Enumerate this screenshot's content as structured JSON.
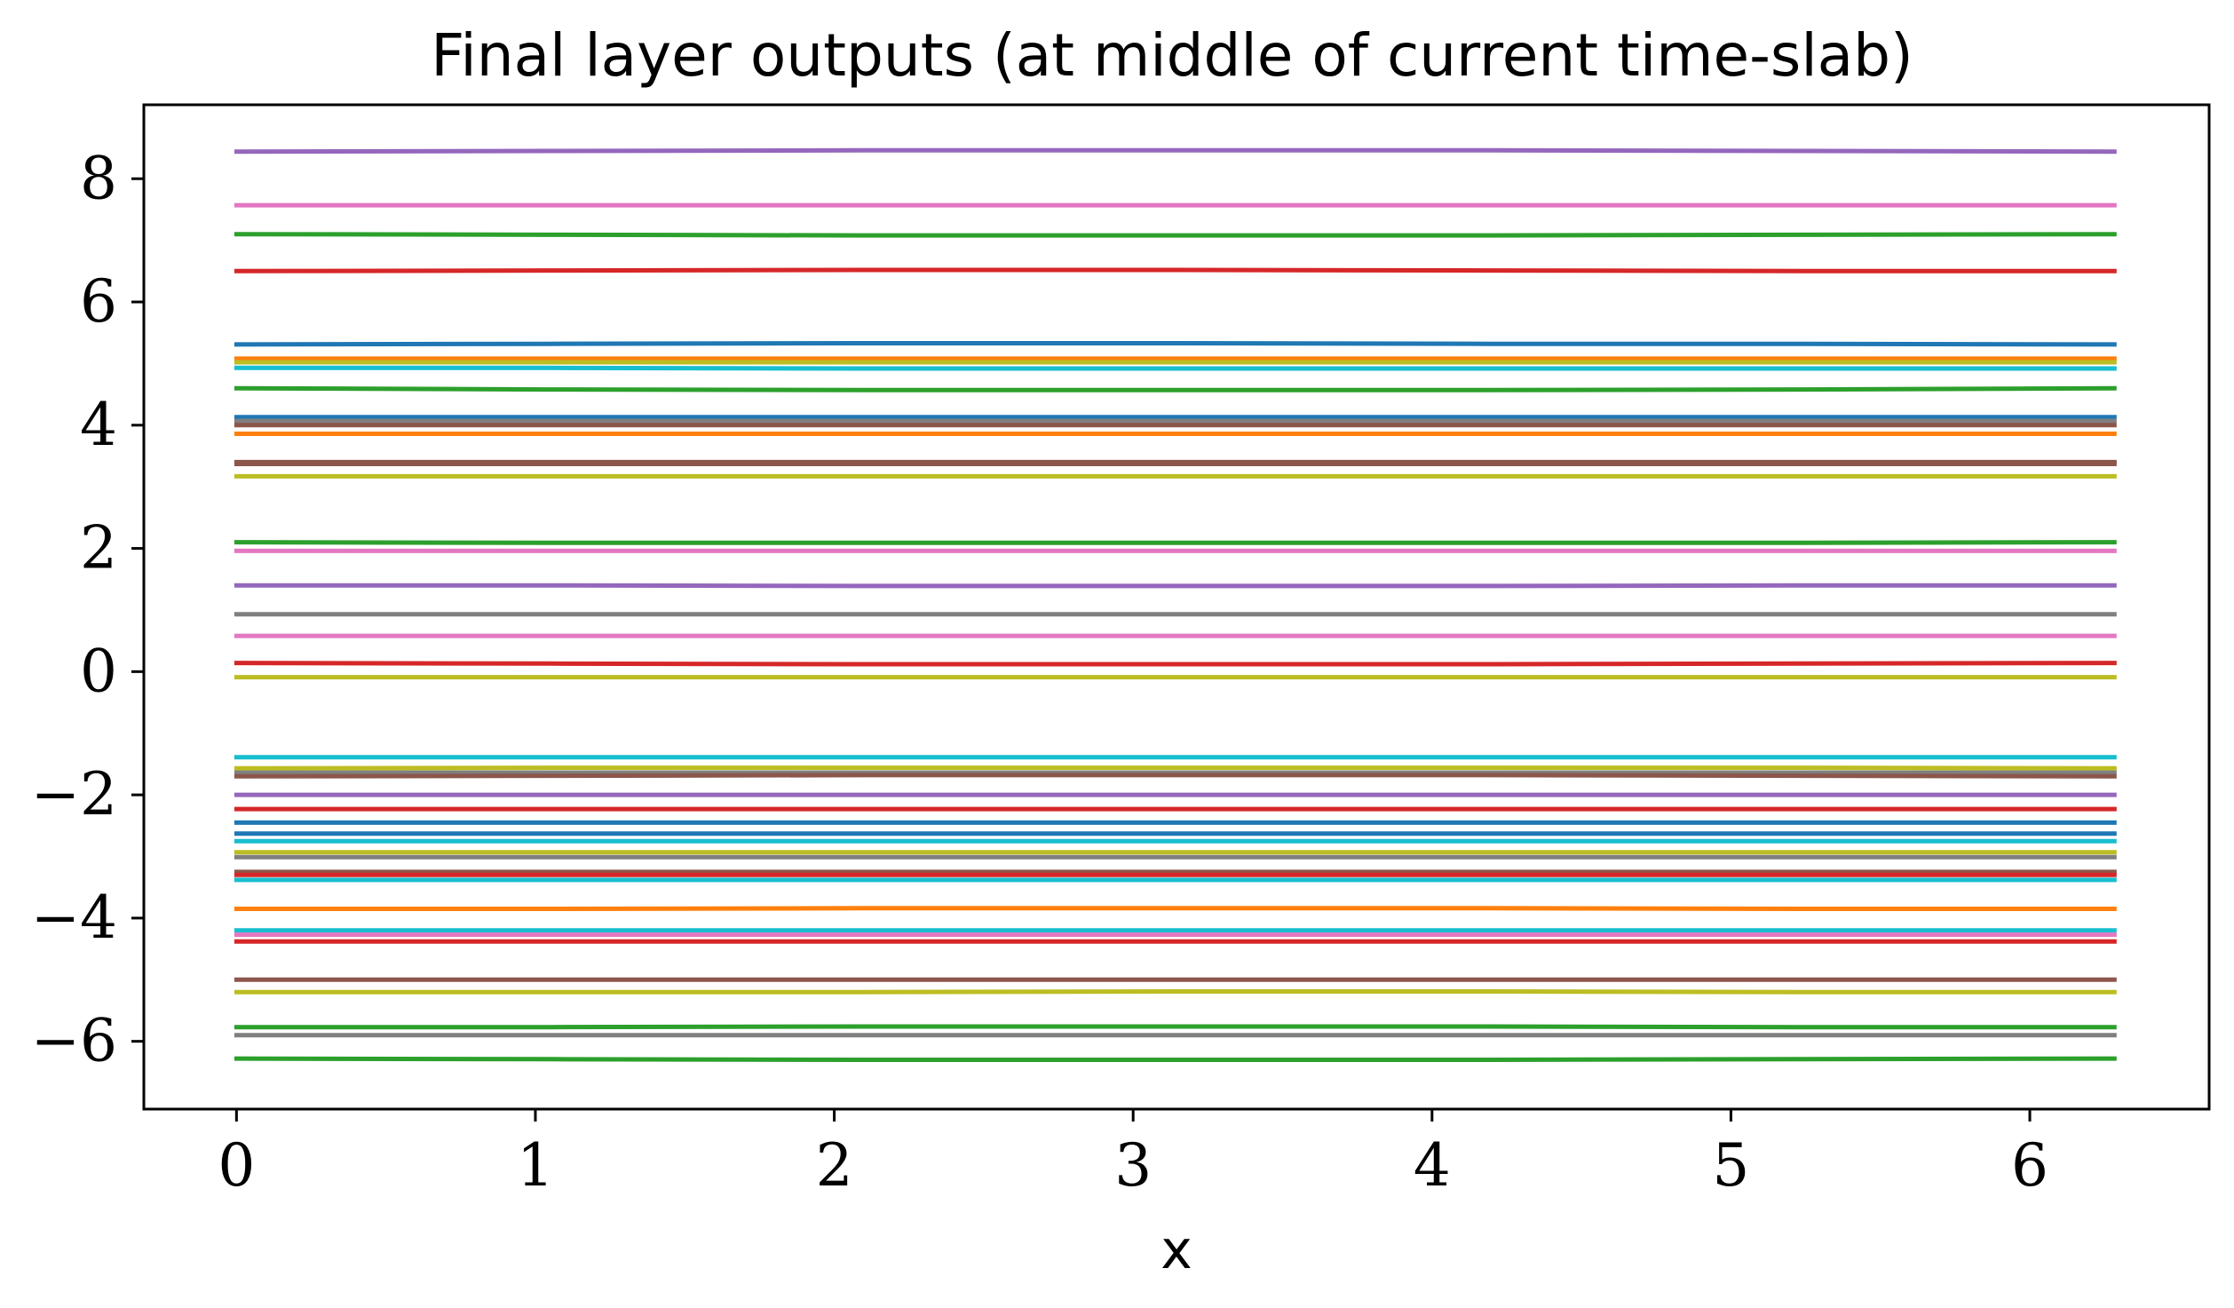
{
  "chart_data": {
    "type": "line",
    "title": "Final layer outputs (at middle of current time-slab)",
    "xlabel": "x",
    "ylabel": "",
    "xlim": [
      -0.31,
      6.6
    ],
    "ylim": [
      -7.1,
      9.2
    ],
    "xticks": [
      0,
      1,
      2,
      3,
      4,
      5,
      6
    ],
    "yticks": [
      -6,
      -4,
      -2,
      0,
      2,
      4,
      6,
      8
    ],
    "grid": false,
    "legend": "none",
    "x": [
      0,
      1.047,
      2.094,
      3.142,
      4.189,
      5.236,
      6.283
    ],
    "series": [
      {
        "color": "#9467bd",
        "values": [
          8.44,
          8.45,
          8.46,
          8.46,
          8.46,
          8.45,
          8.44
        ]
      },
      {
        "color": "#e377c2",
        "values": [
          7.57,
          7.57,
          7.57,
          7.57,
          7.57,
          7.57,
          7.57
        ]
      },
      {
        "color": "#2ca02c",
        "values": [
          7.1,
          7.09,
          7.08,
          7.08,
          7.08,
          7.09,
          7.1
        ]
      },
      {
        "color": "#d62728",
        "values": [
          6.5,
          6.51,
          6.52,
          6.52,
          6.51,
          6.5,
          6.5
        ]
      },
      {
        "color": "#1f77b4",
        "values": [
          5.31,
          5.32,
          5.33,
          5.33,
          5.32,
          5.32,
          5.31
        ]
      },
      {
        "color": "#ff7f0e",
        "values": [
          5.08,
          5.08,
          5.08,
          5.08,
          5.08,
          5.08,
          5.08
        ]
      },
      {
        "color": "#bcbd22",
        "values": [
          5.02,
          5.02,
          5.02,
          5.02,
          5.02,
          5.02,
          5.02
        ]
      },
      {
        "color": "#17becf",
        "values": [
          4.93,
          4.93,
          4.92,
          4.92,
          4.92,
          4.92,
          4.92
        ]
      },
      {
        "color": "#2ca02c",
        "values": [
          4.6,
          4.58,
          4.57,
          4.57,
          4.57,
          4.58,
          4.6
        ]
      },
      {
        "color": "#1f77b4",
        "values": [
          4.13,
          4.13,
          4.13,
          4.13,
          4.13,
          4.13,
          4.13
        ]
      },
      {
        "color": "#7f7f7f",
        "values": [
          4.07,
          4.07,
          4.07,
          4.07,
          4.07,
          4.07,
          4.07
        ]
      },
      {
        "color": "#8c564b",
        "values": [
          4.0,
          4.0,
          4.0,
          4.0,
          4.0,
          4.0,
          4.0
        ]
      },
      {
        "color": "#ff7f0e",
        "values": [
          3.86,
          3.86,
          3.86,
          3.86,
          3.86,
          3.86,
          3.86
        ]
      },
      {
        "color": "#8c564b",
        "values": [
          3.4,
          3.4,
          3.4,
          3.4,
          3.4,
          3.4,
          3.4
        ]
      },
      {
        "color": "#8c564b",
        "values": [
          3.37,
          3.37,
          3.37,
          3.37,
          3.37,
          3.37,
          3.37
        ]
      },
      {
        "color": "#bcbd22",
        "values": [
          3.17,
          3.17,
          3.17,
          3.17,
          3.17,
          3.17,
          3.17
        ]
      },
      {
        "color": "#2ca02c",
        "values": [
          2.1,
          2.09,
          2.09,
          2.09,
          2.09,
          2.09,
          2.1
        ]
      },
      {
        "color": "#e377c2",
        "values": [
          1.96,
          1.96,
          1.96,
          1.96,
          1.96,
          1.96,
          1.96
        ]
      },
      {
        "color": "#9467bd",
        "values": [
          1.4,
          1.4,
          1.39,
          1.39,
          1.39,
          1.4,
          1.4
        ]
      },
      {
        "color": "#7f7f7f",
        "values": [
          0.93,
          0.93,
          0.93,
          0.93,
          0.93,
          0.93,
          0.93
        ]
      },
      {
        "color": "#e377c2",
        "values": [
          0.58,
          0.58,
          0.58,
          0.58,
          0.58,
          0.58,
          0.58
        ]
      },
      {
        "color": "#d62728",
        "values": [
          0.14,
          0.13,
          0.12,
          0.12,
          0.12,
          0.13,
          0.14
        ]
      },
      {
        "color": "#bcbd22",
        "values": [
          -0.09,
          -0.09,
          -0.09,
          -0.09,
          -0.09,
          -0.09,
          -0.09
        ]
      },
      {
        "color": "#17becf",
        "values": [
          -1.39,
          -1.39,
          -1.39,
          -1.39,
          -1.39,
          -1.39,
          -1.39
        ]
      },
      {
        "color": "#bcbd22",
        "values": [
          -1.57,
          -1.56,
          -1.56,
          -1.56,
          -1.56,
          -1.56,
          -1.57
        ]
      },
      {
        "color": "#7f7f7f",
        "values": [
          -1.64,
          -1.64,
          -1.64,
          -1.64,
          -1.64,
          -1.64,
          -1.64
        ]
      },
      {
        "color": "#8c564b",
        "values": [
          -1.7,
          -1.69,
          -1.68,
          -1.68,
          -1.68,
          -1.69,
          -1.7
        ]
      },
      {
        "color": "#9467bd",
        "values": [
          -2.0,
          -2.0,
          -2.0,
          -2.0,
          -2.0,
          -2.0,
          -2.0
        ]
      },
      {
        "color": "#d62728",
        "values": [
          -2.23,
          -2.23,
          -2.23,
          -2.23,
          -2.23,
          -2.23,
          -2.23
        ]
      },
      {
        "color": "#1f77b4",
        "values": [
          -2.45,
          -2.45,
          -2.45,
          -2.45,
          -2.45,
          -2.45,
          -2.45
        ]
      },
      {
        "color": "#1f77b4",
        "values": [
          -2.63,
          -2.63,
          -2.63,
          -2.63,
          -2.63,
          -2.63,
          -2.63
        ]
      },
      {
        "color": "#17becf",
        "values": [
          -2.75,
          -2.75,
          -2.75,
          -2.75,
          -2.75,
          -2.75,
          -2.75
        ]
      },
      {
        "color": "#bcbd22",
        "values": [
          -2.93,
          -2.93,
          -2.93,
          -2.93,
          -2.93,
          -2.93,
          -2.93
        ]
      },
      {
        "color": "#7f7f7f",
        "values": [
          -3.01,
          -3.01,
          -3.01,
          -3.01,
          -3.01,
          -3.01,
          -3.01
        ]
      },
      {
        "color": "#8c564b",
        "values": [
          -3.25,
          -3.25,
          -3.25,
          -3.25,
          -3.25,
          -3.25,
          -3.25
        ]
      },
      {
        "color": "#d62728",
        "values": [
          -3.3,
          -3.3,
          -3.3,
          -3.3,
          -3.3,
          -3.3,
          -3.3
        ]
      },
      {
        "color": "#17becf",
        "values": [
          -3.38,
          -3.38,
          -3.38,
          -3.38,
          -3.38,
          -3.38,
          -3.38
        ]
      },
      {
        "color": "#ff7f0e",
        "values": [
          -3.85,
          -3.85,
          -3.84,
          -3.84,
          -3.84,
          -3.85,
          -3.85
        ]
      },
      {
        "color": "#17becf",
        "values": [
          -4.2,
          -4.2,
          -4.2,
          -4.2,
          -4.2,
          -4.2,
          -4.2
        ]
      },
      {
        "color": "#e377c2",
        "values": [
          -4.27,
          -4.27,
          -4.27,
          -4.27,
          -4.27,
          -4.27,
          -4.27
        ]
      },
      {
        "color": "#d62728",
        "values": [
          -4.38,
          -4.38,
          -4.38,
          -4.38,
          -4.38,
          -4.38,
          -4.38
        ]
      },
      {
        "color": "#8c564b",
        "values": [
          -5.0,
          -5.0,
          -5.0,
          -5.0,
          -5.0,
          -5.0,
          -5.0
        ]
      },
      {
        "color": "#bcbd22",
        "values": [
          -5.2,
          -5.2,
          -5.2,
          -5.19,
          -5.19,
          -5.2,
          -5.2
        ]
      },
      {
        "color": "#2ca02c",
        "values": [
          -5.77,
          -5.77,
          -5.76,
          -5.76,
          -5.76,
          -5.77,
          -5.77
        ]
      },
      {
        "color": "#7f7f7f",
        "values": [
          -5.9,
          -5.9,
          -5.9,
          -5.9,
          -5.9,
          -5.9,
          -5.9
        ]
      },
      {
        "color": "#2ca02c",
        "values": [
          -6.28,
          -6.29,
          -6.3,
          -6.3,
          -6.3,
          -6.29,
          -6.28
        ]
      }
    ]
  }
}
